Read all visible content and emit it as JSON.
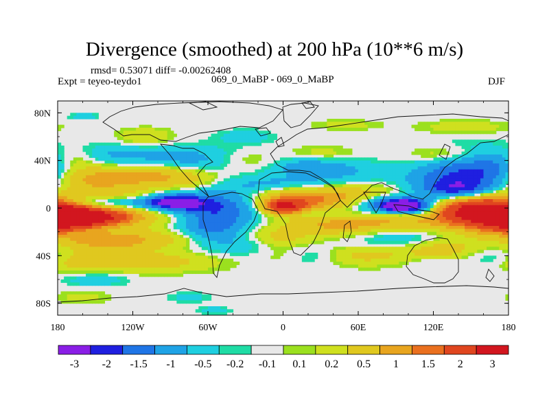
{
  "chart_data": {
    "type": "heatmap",
    "title": "Divergence (smoothed) at 200 hPa (10**6 m/s)",
    "stats_line": "rmsd= 0.53071 diff= -0.00262408",
    "experiment_label": "Expt = teyeo-teydo1",
    "center_label": "069_0_MaBP - 069_0_MaBP",
    "season_label": "DJF",
    "x_axis": {
      "range": [
        -180,
        180
      ],
      "ticks": [
        {
          "value": -180,
          "label": "180"
        },
        {
          "value": -120,
          "label": "120W"
        },
        {
          "value": -60,
          "label": "60W"
        },
        {
          "value": 0,
          "label": "0"
        },
        {
          "value": 60,
          "label": "60E"
        },
        {
          "value": 120,
          "label": "120E"
        },
        {
          "value": 180,
          "label": "180"
        }
      ]
    },
    "y_axis": {
      "range": [
        -90,
        90
      ],
      "ticks": [
        {
          "value": 80,
          "label": "80N"
        },
        {
          "value": 40,
          "label": "40N"
        },
        {
          "value": 0,
          "label": "0"
        },
        {
          "value": -40,
          "label": "40S"
        },
        {
          "value": -80,
          "label": "80S"
        }
      ]
    },
    "colorbar": {
      "colors": [
        "#8a1ee6",
        "#1f1fe0",
        "#1f75e6",
        "#1fa3e6",
        "#1fcfe0",
        "#1fdca5",
        "#e8e8e8",
        "#9be01f",
        "#cfe01f",
        "#e0c81f",
        "#e8a51f",
        "#ea701f",
        "#e0461f",
        "#d2161f"
      ],
      "labels": [
        "-3",
        "-2",
        "-1.5",
        "-1",
        "-0.5",
        "-0.2",
        "-0.1",
        "0.1",
        "0.2",
        "0.5",
        "1",
        "1.5",
        "2",
        "3"
      ]
    },
    "blobs": [
      {
        "lon": -157,
        "lat": -8,
        "rlon": 22,
        "rlat": 5,
        "v": 3.2
      },
      {
        "lon": -172,
        "lat": -8,
        "rlon": 14,
        "rlat": 8,
        "v": 1.8
      },
      {
        "lon": -120,
        "lat": -6,
        "rlon": 45,
        "rlat": 7,
        "v": 0.8
      },
      {
        "lon": -150,
        "lat": 5,
        "rlon": 35,
        "rlat": 4,
        "v": -1.2
      },
      {
        "lon": -88,
        "lat": 5,
        "rlon": 18,
        "rlat": 5,
        "v": -2.5
      },
      {
        "lon": -120,
        "lat": 9,
        "rlon": 40,
        "rlat": 5,
        "v": 0.7
      },
      {
        "lon": -105,
        "lat": 28,
        "rlon": 30,
        "rlat": 7,
        "v": 1.2
      },
      {
        "lon": -155,
        "lat": 23,
        "rlon": 25,
        "rlat": 7,
        "v": 1.0
      },
      {
        "lon": -80,
        "lat": 40,
        "rlon": 40,
        "rlat": 8,
        "v": -0.8
      },
      {
        "lon": -70,
        "lat": 22,
        "rlon": 20,
        "rlat": 6,
        "v": 0.4
      },
      {
        "lon": -165,
        "lat": 40,
        "rlon": 15,
        "rlat": 7,
        "v": 0.5
      },
      {
        "lon": -140,
        "lat": 45,
        "rlon": 20,
        "rlat": 6,
        "v": -0.4
      },
      {
        "lon": -62,
        "lat": -5,
        "rlon": 22,
        "rlat": 15,
        "v": -1.0
      },
      {
        "lon": -40,
        "lat": 0,
        "rlon": 22,
        "rlat": 10,
        "v": -0.8
      },
      {
        "lon": -55,
        "lat": -20,
        "rlon": 15,
        "rlat": 10,
        "v": -0.6
      },
      {
        "lon": -30,
        "lat": -30,
        "rlon": 15,
        "rlat": 6,
        "v": -0.4
      },
      {
        "lon": -100,
        "lat": -26,
        "rlon": 35,
        "rlat": 6,
        "v": 0.7
      },
      {
        "lon": -145,
        "lat": -28,
        "rlon": 25,
        "rlat": 6,
        "v": 1.0
      },
      {
        "lon": -110,
        "lat": -45,
        "rlon": 40,
        "rlat": 6,
        "v": 0.8
      },
      {
        "lon": -165,
        "lat": -45,
        "rlon": 12,
        "rlat": 6,
        "v": 0.5
      },
      {
        "lon": -150,
        "lat": -60,
        "rlon": 18,
        "rlat": 4,
        "v": -0.4
      },
      {
        "lon": -75,
        "lat": -75,
        "rlon": 12,
        "rlat": 3,
        "v": -0.3
      },
      {
        "lon": -55,
        "lat": -86,
        "rlon": 8,
        "rlat": 2,
        "v": -0.5
      },
      {
        "lon": -160,
        "lat": -75,
        "rlon": 15,
        "rlat": 4,
        "v": 0.3
      },
      {
        "lon": 0,
        "lat": 1,
        "rlon": 10,
        "rlat": 4,
        "v": 2.4
      },
      {
        "lon": 8,
        "lat": 4,
        "rlon": 22,
        "rlat": 7,
        "v": 1.2
      },
      {
        "lon": 25,
        "lat": 10,
        "rlon": 30,
        "rlat": 9,
        "v": 0.8
      },
      {
        "lon": 0,
        "lat": 20,
        "rlon": 35,
        "rlat": 5,
        "v": -0.7
      },
      {
        "lon": 20,
        "lat": 35,
        "rlon": 20,
        "rlat": 6,
        "v": -0.6
      },
      {
        "lon": 45,
        "lat": 30,
        "rlon": 30,
        "rlat": 8,
        "v": -0.5
      },
      {
        "lon": 30,
        "lat": 45,
        "rlon": 20,
        "rlat": 5,
        "v": 0.4
      },
      {
        "lon": -30,
        "lat": 40,
        "rlon": 20,
        "rlat": 6,
        "v": 0.5
      },
      {
        "lon": 30,
        "lat": -5,
        "rlon": 20,
        "rlat": 4,
        "v": -0.7
      },
      {
        "lon": 40,
        "lat": -15,
        "rlon": 30,
        "rlat": 6,
        "v": 0.8
      },
      {
        "lon": -5,
        "lat": -25,
        "rlon": 20,
        "rlat": 6,
        "v": 0.6
      },
      {
        "lon": 20,
        "lat": -40,
        "rlon": 25,
        "rlat": 6,
        "v": -0.5
      },
      {
        "lon": 60,
        "lat": -40,
        "rlon": 25,
        "rlat": 6,
        "v": 0.7
      },
      {
        "lon": 0,
        "lat": -40,
        "rlon": 15,
        "rlat": 5,
        "v": 0.4
      },
      {
        "lon": 95,
        "lat": 2,
        "rlon": 12,
        "rlat": 4,
        "v": -2.6
      },
      {
        "lon": 80,
        "lat": 3,
        "rlon": 18,
        "rlat": 7,
        "v": -1.2
      },
      {
        "lon": 112,
        "lat": 0,
        "rlon": 12,
        "rlat": 6,
        "v": -1.0
      },
      {
        "lon": 75,
        "lat": -10,
        "rlon": 35,
        "rlat": 6,
        "v": 0.8
      },
      {
        "lon": 70,
        "lat": 12,
        "rlon": 30,
        "rlat": 6,
        "v": 0.7
      },
      {
        "lon": 100,
        "lat": -25,
        "rlon": 30,
        "rlat": 6,
        "v": -0.6
      },
      {
        "lon": 120,
        "lat": 15,
        "rlon": 20,
        "rlat": 12,
        "v": -0.7
      },
      {
        "lon": 160,
        "lat": 0,
        "rlon": 25,
        "rlat": 8,
        "v": 3.0
      },
      {
        "lon": 150,
        "lat": -5,
        "rlon": 35,
        "rlat": 10,
        "v": 1.6
      },
      {
        "lon": 170,
        "lat": -15,
        "rlon": 15,
        "rlat": 6,
        "v": 1.0
      },
      {
        "lon": 150,
        "lat": 25,
        "rlon": 25,
        "rlat": 15,
        "v": -1.6
      },
      {
        "lon": 140,
        "lat": 15,
        "rlon": 15,
        "rlat": 5,
        "v": -0.8
      },
      {
        "lon": 130,
        "lat": 45,
        "rlon": 20,
        "rlat": 5,
        "v": 0.6
      },
      {
        "lon": 170,
        "lat": 35,
        "rlon": 10,
        "rlat": 8,
        "v": -0.4
      },
      {
        "lon": 130,
        "lat": -35,
        "rlon": 25,
        "rlat": 8,
        "v": 0.9
      },
      {
        "lon": 160,
        "lat": -40,
        "rlon": 20,
        "rlat": 6,
        "v": -0.5
      },
      {
        "lon": 120,
        "lat": -45,
        "rlon": 15,
        "rlat": 4,
        "v": -0.4
      },
      {
        "lon": -110,
        "lat": 60,
        "rlon": 15,
        "rlat": 5,
        "v": 0.5
      },
      {
        "lon": -30,
        "lat": 60,
        "rlon": 15,
        "rlat": 4,
        "v": -0.4
      },
      {
        "lon": 50,
        "lat": 70,
        "rlon": 20,
        "rlat": 3,
        "v": 0.3
      },
      {
        "lon": -160,
        "lat": 77,
        "rlon": 8,
        "rlat": 2,
        "v": -0.4
      },
      {
        "lon": 145,
        "lat": 68,
        "rlon": 25,
        "rlat": 4,
        "v": 0.4
      }
    ]
  }
}
